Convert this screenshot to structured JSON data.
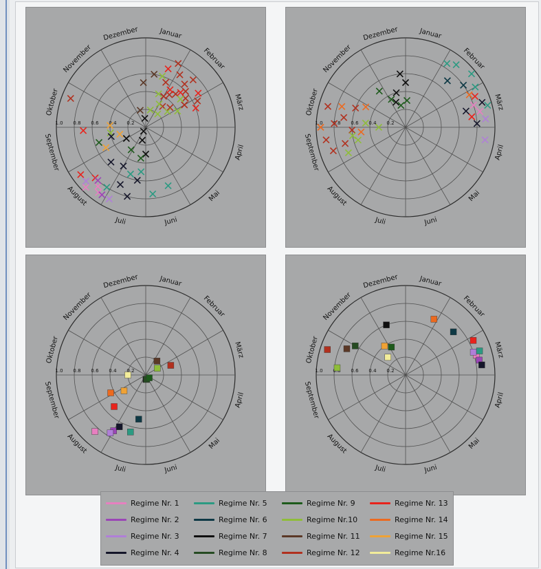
{
  "colors": {
    "Regime Nr. 1": "#e77fc0",
    "Regime Nr. 2": "#9b46b6",
    "Regime Nr. 3": "#b07fd8",
    "Regime Nr. 4": "#15162a",
    "Regime Nr. 5": "#2b9a82",
    "Regime Nr. 6": "#0e3945",
    "Regime Nr. 7": "#0f0f0f",
    "Regime Nr. 8": "#264b22",
    "Regime Nr. 9": "#1d5a1b",
    "Regime Nr.10": "#8fbd3a",
    "Regime Nr. 11": "#5b3826",
    "Regime Nr. 12": "#b1301e",
    "Regime Nr. 13": "#e8231c",
    "Regime Nr. 14": "#ec6a1f",
    "Regime Nr. 15": "#efa235",
    "Regime Nr.16": "#f2ec9a"
  },
  "legend": {
    "items": [
      "Regime Nr. 1",
      "Regime Nr. 2",
      "Regime Nr. 3",
      "Regime Nr. 4",
      "Regime Nr. 5",
      "Regime Nr. 6",
      "Regime Nr. 7",
      "Regime Nr. 8",
      "Regime Nr. 9",
      "Regime Nr.10",
      "Regime Nr. 11",
      "Regime Nr. 12",
      "Regime Nr. 13",
      "Regime Nr. 14",
      "Regime Nr. 15",
      "Regime Nr.16"
    ]
  },
  "chart_data": [
    {
      "type": "scatter",
      "subtype": "polar",
      "marker": "x",
      "angular_labels": [
        "Januar",
        "Februar",
        "März",
        "April",
        "Mai",
        "Juni",
        "Juli",
        "August",
        "September",
        "Oktober",
        "November",
        "Dezember"
      ],
      "radial_ticks": [
        "1.0",
        "0.8",
        "0.6",
        "0.4",
        "0.2"
      ],
      "rlim": [
        0,
        1
      ],
      "grid": true,
      "series": [
        {
          "name": "Regime Nr. 12",
          "points": [
            [
              0.7,
              0.45
            ],
            [
              0.9,
              0.5
            ],
            [
              1.1,
              0.6
            ],
            [
              1.3,
              0.55
            ],
            [
              0.6,
              0.7
            ],
            [
              1.0,
              0.75
            ],
            [
              1.5,
              0.5
            ],
            [
              0.3,
              0.55
            ],
            [
              0.8,
              0.3
            ],
            [
              1.2,
              0.35
            ],
            [
              0.5,
              0.4
            ],
            [
              1.6,
              0.65
            ],
            [
              0.4,
              0.8
            ],
            [
              9.2,
              0.9
            ],
            [
              0.9,
              0.65
            ]
          ]
        },
        {
          "name": "Regime Nr. 13",
          "points": [
            [
              0.6,
              0.5
            ],
            [
              1.0,
              0.55
            ],
            [
              1.4,
              0.7
            ],
            [
              0.2,
              0.7
            ],
            [
              1.8,
              0.6
            ],
            [
              7.3,
              0.9
            ],
            [
              7.0,
              0.8
            ],
            [
              8.4,
              0.7
            ]
          ]
        },
        {
          "name": "Regime Nr.10",
          "points": [
            [
              0.2,
              0.4
            ],
            [
              0.5,
              0.3
            ],
            [
              0.9,
              0.2
            ],
            [
              1.3,
              0.3
            ],
            [
              0.1,
              0.6
            ],
            [
              1.6,
              0.4
            ],
            [
              0.0,
              0.2
            ],
            [
              1.2,
              0.5
            ],
            [
              8.2,
              0.4
            ]
          ]
        },
        {
          "name": "Regime Nr. 4",
          "points": [
            [
              5.8,
              0.6
            ],
            [
              6.3,
              0.7
            ],
            [
              6.0,
              0.8
            ],
            [
              7.0,
              0.55
            ],
            [
              6.5,
              0.5
            ],
            [
              8.0,
              0.4
            ]
          ]
        },
        {
          "name": "Regime Nr. 5",
          "points": [
            [
              5.7,
              0.5
            ],
            [
              6.1,
              0.55
            ],
            [
              6.6,
              0.8
            ],
            [
              5.3,
              0.75
            ],
            [
              4.8,
              0.7
            ]
          ]
        },
        {
          "name": "Regime Nr. 1",
          "points": [
            [
              6.8,
              0.85
            ],
            [
              7.0,
              0.95
            ],
            [
              6.7,
              0.9
            ]
          ]
        },
        {
          "name": "Regime Nr. 2",
          "points": [
            [
              6.6,
              0.9
            ],
            [
              6.9,
              0.8
            ]
          ]
        },
        {
          "name": "Regime Nr. 3",
          "points": [
            [
              6.4,
              0.9
            ],
            [
              7.1,
              0.9
            ]
          ]
        },
        {
          "name": "Regime Nr. 15",
          "points": [
            [
              8.0,
              0.3
            ],
            [
              8.6,
              0.4
            ],
            [
              7.6,
              0.5
            ]
          ]
        },
        {
          "name": "Regime Nr. 7",
          "points": [
            [
              6.5,
              0.05
            ],
            [
              6.0,
              0.15
            ],
            [
              7.5,
              0.25
            ],
            [
              5.5,
              0.3
            ],
            [
              11.3,
              0.1
            ]
          ]
        },
        {
          "name": "Regime Nr. 11",
          "points": [
            [
              11.4,
              0.5
            ],
            [
              10.9,
              0.2
            ],
            [
              11.8,
              0.6
            ]
          ]
        },
        {
          "name": "Regime Nr. 9",
          "points": [
            [
              6.6,
              0.3
            ],
            [
              7.9,
              0.55
            ],
            [
              5.8,
              0.35
            ]
          ]
        }
      ]
    },
    {
      "type": "scatter",
      "subtype": "polar",
      "marker": "x",
      "angular_labels": [
        "Januar",
        "Februar",
        "März",
        "April",
        "Mai",
        "Juni",
        "Juli",
        "August",
        "September",
        "Oktober",
        "November",
        "Dezember"
      ],
      "radial_ticks": [
        "1.0",
        "0.8",
        "0.6",
        "0.4",
        "0.2"
      ],
      "rlim": [
        0,
        1
      ],
      "grid": true,
      "series": [
        {
          "name": "Regime Nr. 12",
          "points": [
            [
              8.6,
              0.8
            ],
            [
              8.2,
              0.9
            ],
            [
              8.8,
              0.7
            ],
            [
              9.0,
              0.9
            ],
            [
              8.4,
              0.6
            ],
            [
              7.9,
              0.85
            ],
            [
              9.2,
              0.6
            ],
            [
              8.0,
              0.7
            ]
          ]
        },
        {
          "name": "Regime Nr. 14",
          "points": [
            [
              8.5,
              0.95
            ],
            [
              9.1,
              0.75
            ],
            [
              1.6,
              0.8
            ],
            [
              9.4,
              0.5
            ],
            [
              8.3,
              0.5
            ]
          ]
        },
        {
          "name": "Regime Nr.10",
          "points": [
            [
              8.2,
              0.6
            ],
            [
              8.0,
              0.55
            ],
            [
              8.7,
              0.45
            ],
            [
              7.7,
              0.7
            ],
            [
              8.5,
              0.3
            ]
          ]
        },
        {
          "name": "Regime Nr. 5",
          "points": [
            [
              0.8,
              0.9
            ],
            [
              1.2,
              0.95
            ],
            [
              0.6,
              0.85
            ],
            [
              1.5,
              0.9
            ],
            [
              2.0,
              0.95
            ]
          ]
        },
        {
          "name": "Regime Nr. 1",
          "points": [
            [
              1.9,
              0.8
            ],
            [
              2.1,
              0.85
            ]
          ]
        },
        {
          "name": "Regime Nr. 3",
          "points": [
            [
              2.3,
              0.9
            ],
            [
              2.8,
              0.9
            ]
          ]
        },
        {
          "name": "Regime Nr. 13",
          "points": [
            [
              1.7,
              0.85
            ],
            [
              2.2,
              0.75
            ]
          ]
        },
        {
          "name": "Regime Nr. 4",
          "points": [
            [
              1.9,
              0.9
            ],
            [
              2.0,
              0.7
            ],
            [
              2.4,
              0.8
            ]
          ]
        },
        {
          "name": "Regime Nr. 6",
          "points": [
            [
              0.9,
              0.7
            ],
            [
              1.3,
              0.8
            ]
          ]
        },
        {
          "name": "Regime Nr. 7",
          "points": [
            [
              11.5,
              0.5
            ],
            [
              11.0,
              0.4
            ],
            [
              10.8,
              0.3
            ],
            [
              11.3,
              0.6
            ]
          ]
        },
        {
          "name": "Regime Nr. 9",
          "points": [
            [
              10.6,
              0.35
            ],
            [
              11.1,
              0.25
            ],
            [
              11.6,
              0.3
            ],
            [
              10.3,
              0.5
            ]
          ]
        }
      ]
    },
    {
      "type": "scatter",
      "subtype": "polar",
      "marker": "square",
      "angular_labels": [
        "Januar",
        "Februar",
        "März",
        "April",
        "Mai",
        "Juni",
        "Juli",
        "August",
        "September",
        "Oktober",
        "November",
        "Dezember"
      ],
      "radial_ticks": [
        "1.0",
        "0.8",
        "0.6",
        "0.4",
        "0.2"
      ],
      "rlim": [
        0,
        1
      ],
      "grid": true,
      "series": [
        {
          "name": "Regime Nr. 1",
          "points": [
            [
              6.9,
              0.85
            ]
          ]
        },
        {
          "name": "Regime Nr. 2",
          "points": [
            [
              6.5,
              0.72
            ]
          ]
        },
        {
          "name": "Regime Nr. 3",
          "points": [
            [
              6.55,
              0.76
            ]
          ]
        },
        {
          "name": "Regime Nr. 4",
          "points": [
            [
              6.4,
              0.65
            ]
          ]
        },
        {
          "name": "Regime Nr. 5",
          "points": [
            [
              6.0,
              0.66
            ]
          ]
        },
        {
          "name": "Regime Nr. 6",
          "points": [
            [
              5.8,
              0.5
            ]
          ]
        },
        {
          "name": "Regime Nr. 7",
          "points": [
            [
              5.4,
              0.05
            ]
          ]
        },
        {
          "name": "Regime Nr. 8",
          "points": [
            [
              5.1,
              0.05
            ]
          ]
        },
        {
          "name": "Regime Nr. 9",
          "points": [
            [
              3.8,
              0.05
            ]
          ]
        },
        {
          "name": "Regime Nr.10",
          "points": [
            [
              1.5,
              0.15
            ]
          ]
        },
        {
          "name": "Regime Nr. 11",
          "points": [
            [
              0.8,
              0.2
            ]
          ]
        },
        {
          "name": "Regime Nr. 12",
          "points": [
            [
              1.8,
              0.3
            ]
          ]
        },
        {
          "name": "Regime Nr. 13",
          "points": [
            [
              7.0,
              0.5
            ]
          ]
        },
        {
          "name": "Regime Nr. 14",
          "points": [
            [
              7.6,
              0.44
            ]
          ]
        },
        {
          "name": "Regime Nr. 15",
          "points": [
            [
              7.3,
              0.3
            ]
          ]
        },
        {
          "name": "Regime Nr.16",
          "points": [
            [
              8.5,
              0.2
            ]
          ]
        }
      ]
    },
    {
      "type": "scatter",
      "subtype": "polar",
      "marker": "square",
      "angular_labels": [
        "Januar",
        "Februar",
        "März",
        "April",
        "Mai",
        "Juni",
        "Juli",
        "August",
        "September",
        "Oktober",
        "November",
        "Dezember"
      ],
      "radial_ticks": [
        "1.0",
        "0.8",
        "0.6",
        "0.4",
        "0.2"
      ],
      "rlim": [
        0,
        1
      ],
      "grid": true,
      "series": [
        {
          "name": "Regime Nr. 1",
          "points": [
            [
              1.98,
              0.82
            ]
          ]
        },
        {
          "name": "Regime Nr. 2",
          "points": [
            [
              2.12,
              0.84
            ]
          ]
        },
        {
          "name": "Regime Nr. 3",
          "points": [
            [
              1.88,
              0.8
            ]
          ]
        },
        {
          "name": "Regime Nr. 4",
          "points": [
            [
              2.25,
              0.86
            ]
          ]
        },
        {
          "name": "Regime Nr. 5",
          "points": [
            [
              1.9,
              0.87
            ]
          ]
        },
        {
          "name": "Regime Nr. 6",
          "points": [
            [
              1.1,
              0.72
            ]
          ]
        },
        {
          "name": "Regime Nr. 7",
          "points": [
            [
              10.8,
              0.6
            ]
          ]
        },
        {
          "name": "Regime Nr. 8",
          "points": [
            [
              9.5,
              0.65
            ]
          ]
        },
        {
          "name": "Regime Nr. 9",
          "points": [
            [
              10.6,
              0.35
            ]
          ]
        },
        {
          "name": "Regime Nr.10",
          "points": [
            [
              8.7,
              0.77
            ]
          ]
        },
        {
          "name": "Regime Nr. 11",
          "points": [
            [
              9.3,
              0.72
            ]
          ]
        },
        {
          "name": "Regime Nr. 12",
          "points": [
            [
              9.1,
              0.92
            ]
          ]
        },
        {
          "name": "Regime Nr. 13",
          "points": [
            [
              1.6,
              0.85
            ]
          ]
        },
        {
          "name": "Regime Nr. 14",
          "points": [
            [
              0.4,
              0.7
            ]
          ]
        },
        {
          "name": "Regime Nr. 15",
          "points": [
            [
              10.3,
              0.4
            ]
          ]
        },
        {
          "name": "Regime Nr.16",
          "points": [
            [
              10.0,
              0.28
            ]
          ]
        }
      ]
    }
  ]
}
